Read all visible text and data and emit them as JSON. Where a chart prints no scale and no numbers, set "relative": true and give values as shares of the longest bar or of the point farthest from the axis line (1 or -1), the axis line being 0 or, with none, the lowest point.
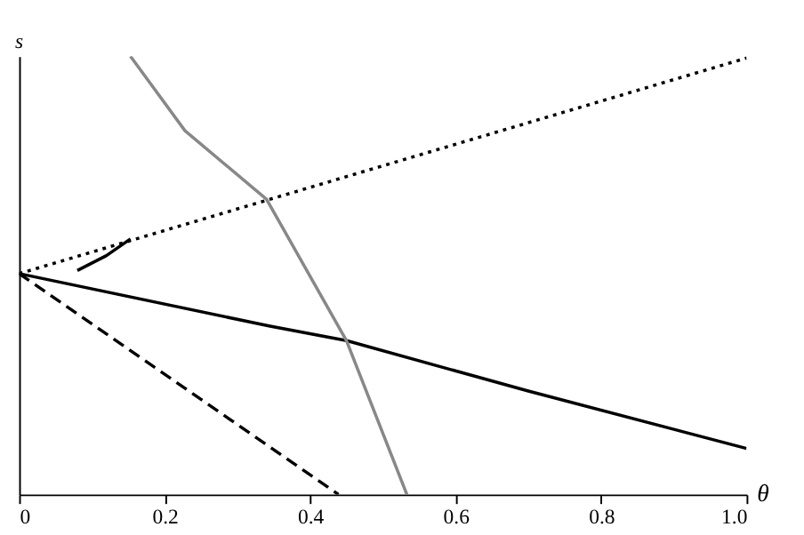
{
  "chart_data": {
    "type": "line",
    "xlabel": "θ",
    "ylabel": "s",
    "relative": true,
    "xlim": [
      0,
      1.0
    ],
    "xticks": [
      0,
      0.2,
      0.4,
      0.6,
      0.8,
      {
        "value": 1.0,
        "label": "1.0"
      }
    ],
    "tick_labels": "x",
    "grid": false,
    "series": [
      {
        "color": "#000000",
        "line_style": "dotted",
        "x": [
          0,
          1.0
        ],
        "values": [
          0.504,
          0.996
        ]
      },
      {
        "color": "#000000",
        "line_style": "solid",
        "x": [
          0,
          0.345,
          0.45,
          0.7,
          1.0
        ],
        "values": [
          0.504,
          0.384,
          0.351,
          0.236,
          0.105
        ]
      },
      {
        "color": "#000000",
        "line_style": "dashed",
        "x": [
          0,
          0.439
        ],
        "values": [
          0.504,
          0
        ]
      },
      {
        "color": "#888888",
        "line_style": "solid",
        "x": [
          0.153,
          0.228,
          0.34,
          0.45,
          0.533
        ],
        "values": [
          1.0,
          0.83,
          0.674,
          0.351,
          0
        ]
      },
      {
        "color": "#000000",
        "line_style": "solid",
        "x": [
          0.08,
          0.12,
          0.153
        ],
        "values": [
          0.511,
          0.545,
          0.583
        ]
      }
    ]
  }
}
